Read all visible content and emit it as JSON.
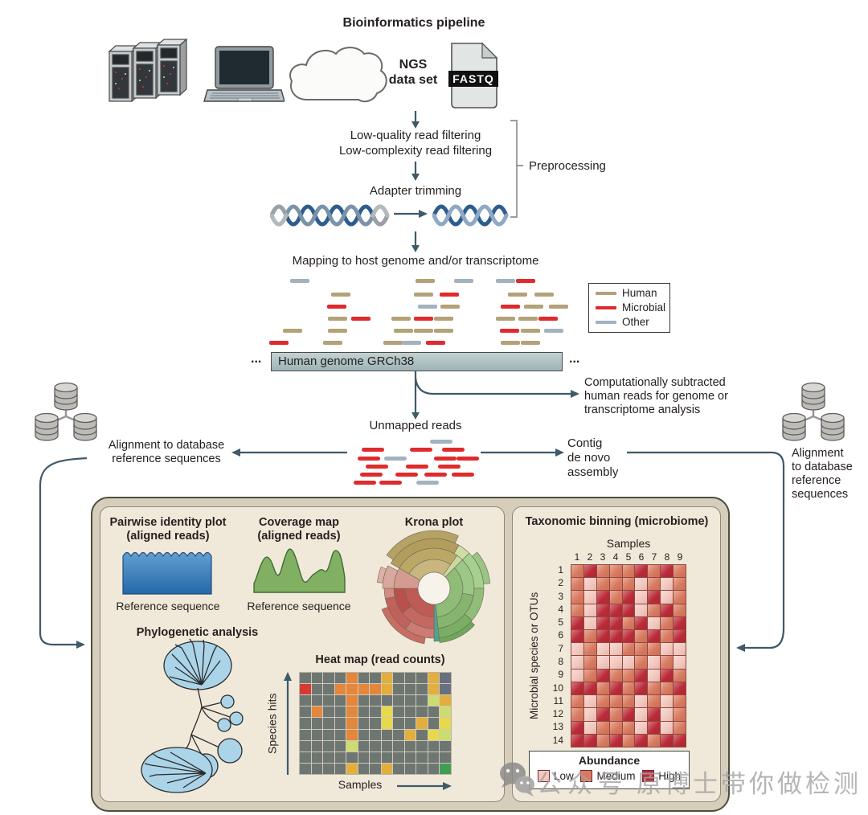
{
  "pipeline": {
    "title": "Bioinformatics pipeline",
    "ngs1": "NGS",
    "ngs2": "data set",
    "fastq": "FASTQ",
    "filter1": "Low-quality read filtering",
    "filter2": "Low-complexity read filtering",
    "adapter": "Adapter trimming",
    "preprocessing": "Preprocessing",
    "mapping": "Mapping to host genome and/or transcriptome",
    "genome_bar": "Human genome GRCh38",
    "ellipsis": "...",
    "subtracted1": "Computationally subtracted",
    "subtracted2": "human reads for genome or",
    "subtracted3": "transcriptome analysis",
    "unmapped": "Unmapped reads",
    "align_left1": "Alignment to database",
    "align_left2": "reference sequences",
    "contig1": "Contig",
    "contig2": "de novo",
    "contig3": "assembly",
    "align_right1": "Alignment",
    "align_right2": "to database",
    "align_right3": "reference",
    "align_right4": "sequences"
  },
  "reads": {
    "colors": {
      "H": "#b3a177",
      "M": "#df2b2d",
      "O": "#a2b2bf"
    },
    "legend": [
      {
        "label": "Human",
        "key": "H"
      },
      {
        "label": "Microbial",
        "key": "M"
      },
      {
        "label": "Other",
        "key": "O"
      }
    ],
    "scatter": [
      [
        26,
        9,
        "O"
      ],
      [
        182,
        9,
        "H"
      ],
      [
        230,
        9,
        "O"
      ],
      [
        282,
        9,
        "O"
      ],
      [
        307,
        9,
        "M"
      ],
      [
        77,
        26,
        "H"
      ],
      [
        180,
        26,
        "H"
      ],
      [
        212,
        26,
        "M"
      ],
      [
        297,
        26,
        "H"
      ],
      [
        330,
        26,
        "H"
      ],
      [
        72,
        41,
        "M"
      ],
      [
        185,
        41,
        "O"
      ],
      [
        213,
        41,
        "H"
      ],
      [
        288,
        41,
        "M"
      ],
      [
        317,
        41,
        "H"
      ],
      [
        348,
        41,
        "H"
      ],
      [
        73,
        56,
        "H"
      ],
      [
        102,
        56,
        "M"
      ],
      [
        152,
        56,
        "H"
      ],
      [
        180,
        56,
        "M"
      ],
      [
        205,
        56,
        "H"
      ],
      [
        282,
        56,
        "H"
      ],
      [
        310,
        56,
        "H"
      ],
      [
        335,
        56,
        "M"
      ],
      [
        17,
        71,
        "H"
      ],
      [
        73,
        71,
        "H"
      ],
      [
        155,
        71,
        "H"
      ],
      [
        180,
        71,
        "H"
      ],
      [
        205,
        71,
        "H"
      ],
      [
        287,
        71,
        "M"
      ],
      [
        313,
        71,
        "H"
      ],
      [
        342,
        71,
        "O"
      ],
      [
        0,
        86,
        "M"
      ],
      [
        67,
        86,
        "H"
      ],
      [
        142,
        86,
        "H"
      ],
      [
        165,
        86,
        "O"
      ],
      [
        195,
        86,
        "M"
      ],
      [
        288,
        86,
        "H"
      ],
      [
        313,
        86,
        "H"
      ]
    ],
    "unmapped_reads": [
      [
        100,
        7,
        "O"
      ],
      [
        15,
        17,
        "M"
      ],
      [
        75,
        17,
        "M"
      ],
      [
        115,
        17,
        "M"
      ],
      [
        10,
        28,
        "M"
      ],
      [
        43,
        28,
        "O"
      ],
      [
        105,
        28,
        "M"
      ],
      [
        133,
        28,
        "M"
      ],
      [
        20,
        38,
        "M"
      ],
      [
        70,
        38,
        "M"
      ],
      [
        110,
        38,
        "M"
      ],
      [
        13,
        48,
        "M"
      ],
      [
        57,
        48,
        "M"
      ],
      [
        93,
        48,
        "M"
      ],
      [
        127,
        48,
        "M"
      ],
      [
        5,
        58,
        "M"
      ],
      [
        37,
        58,
        "M"
      ],
      [
        83,
        58,
        "O"
      ]
    ]
  },
  "analysis": {
    "pairwise1": "Pairwise identity plot",
    "pairwise2": "(aligned reads)",
    "ref1": "Reference sequence",
    "coverage1": "Coverage map",
    "coverage2": "(aligned reads)",
    "ref2": "Reference sequence",
    "krona": "Krona plot",
    "phylo": "Phylogenetic analysis",
    "krona_segments": [
      [
        -60,
        35,
        20,
        36,
        "#c8b67e"
      ],
      [
        -60,
        35,
        36,
        50,
        "#bca866"
      ],
      [
        -60,
        30,
        50,
        62,
        "#b29d5c"
      ],
      [
        -55,
        25,
        62,
        72,
        "#b6a264"
      ],
      [
        30,
        45,
        50,
        62,
        "#cfdca2"
      ],
      [
        35,
        45,
        20,
        50,
        "#cdd89e"
      ],
      [
        45,
        178,
        20,
        36,
        "#8fbc77"
      ],
      [
        45,
        100,
        36,
        50,
        "#9dc787"
      ],
      [
        100,
        178,
        36,
        50,
        "#86b56f"
      ],
      [
        45,
        90,
        50,
        62,
        "#a6cf90"
      ],
      [
        90,
        130,
        50,
        62,
        "#90bd78"
      ],
      [
        130,
        178,
        50,
        62,
        "#7aae64"
      ],
      [
        50,
        85,
        62,
        70,
        "#9ac583"
      ],
      [
        132,
        174,
        62,
        68,
        "#70a75d"
      ],
      [
        174,
        180,
        20,
        66,
        "#55a08c"
      ],
      [
        180,
        270,
        20,
        36,
        "#bf5a55"
      ],
      [
        180,
        232,
        36,
        50,
        "#c66862"
      ],
      [
        232,
        270,
        36,
        50,
        "#b8504c"
      ],
      [
        180,
        215,
        50,
        62,
        "#cd7b73"
      ],
      [
        215,
        258,
        50,
        62,
        "#c1615b"
      ],
      [
        258,
        270,
        50,
        62,
        "#d28c83"
      ],
      [
        190,
        248,
        62,
        70,
        "#c96c64"
      ],
      [
        270,
        300,
        20,
        50,
        "#d49c90"
      ],
      [
        270,
        296,
        50,
        64,
        "#d8a89c"
      ],
      [
        276,
        292,
        64,
        71,
        "#ddb2a6"
      ]
    ],
    "heatmap": {
      "title": "Heat map (read counts)",
      "ylabel": "Species hits",
      "xlabel": "Samples",
      "palette": {
        "G": "#6e7672",
        "S": "#68707e",
        "R": "#d63a35",
        "O": "#e2873c",
        "Y": "#e3ae3d",
        "L": "#e8d84b",
        "P": "#ccdc72",
        "N": "#3f9e53"
      },
      "rows": [
        "GGGGOGGYGGGYS",
        "RGGOOOOYGGGYS",
        "GGGGOGGGGGGPY",
        "GOGGOGGLGGGGP",
        "GGGGOGGLGGYGL",
        "GGGGOGGGGYGLP",
        "GGGGPGGGGGGGG",
        "GGGGGGGGGGGGG",
        "GGGGYGGYGGGGN"
      ]
    }
  },
  "taxonomic": {
    "title": "Taxonomic binning (microbiome)",
    "samples": "Samples",
    "ylabel": "Microbial species or OTUs",
    "cols": [
      "1",
      "2",
      "3",
      "4",
      "5",
      "6",
      "7",
      "8",
      "9"
    ],
    "row_labels": [
      "1",
      "2",
      "3",
      "4",
      "5",
      "6",
      "7",
      "8",
      "9",
      "10",
      "11",
      "12",
      "13",
      "14"
    ],
    "palette": {
      "L": "#f3c8bf",
      "M": "#d87a60",
      "H": "#ba2b38"
    },
    "rows": [
      "MHMMMHMHM",
      "MLMMMLMLM",
      "MLHMHLHLM",
      "MLHHHLMHM",
      "HLHHMHLMH",
      "HMHHHMHMH",
      "LMLLMMMLL",
      "LMLLLMLML",
      "LMHMMHLHM",
      "HHMHMHMMH",
      "MLMMMLMLM",
      "MLHMHLHLM",
      "HLMMMLHLM",
      "HHMHMHMHH"
    ],
    "abundance": {
      "title": "Abundance",
      "items": [
        {
          "label": "Low",
          "key": "L"
        },
        {
          "label": "Medium",
          "key": "M"
        },
        {
          "label": "High",
          "key": "H"
        }
      ]
    }
  },
  "watermark": {
    "t1": "公众号",
    "t2": "原博士带你做检测"
  }
}
